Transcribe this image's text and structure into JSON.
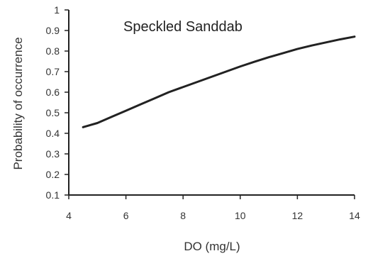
{
  "chart_data": {
    "type": "line",
    "title": "Speckled Sanddab",
    "xlabel": "DO (mg/L)",
    "ylabel": "Probability of occurrence",
    "xlim": [
      4,
      14
    ],
    "ylim": [
      0.1,
      1
    ],
    "xticks": [
      4,
      6,
      8,
      10,
      12,
      14
    ],
    "xtick_labels": [
      "4",
      "6",
      "8",
      "10",
      "12",
      "14"
    ],
    "yticks": [
      0.1,
      0.2,
      0.3,
      0.4,
      0.5,
      0.6,
      0.7,
      0.8,
      0.9,
      1
    ],
    "ytick_labels": [
      "0.1",
      "0.2",
      "0.3",
      "0.4",
      "0.5",
      "0.6",
      "0.7",
      "0.8",
      "0.9",
      "1"
    ],
    "grid": false,
    "series": [
      {
        "color": "#222222",
        "x": [
          4.5,
          5,
          5.5,
          6,
          6.5,
          7,
          7.5,
          8,
          8.5,
          9,
          9.5,
          10,
          10.5,
          11,
          11.5,
          12,
          12.5,
          13,
          13.5,
          14
        ],
        "y": [
          0.43,
          0.45,
          0.48,
          0.51,
          0.54,
          0.57,
          0.6,
          0.625,
          0.65,
          0.675,
          0.7,
          0.725,
          0.748,
          0.77,
          0.79,
          0.81,
          0.827,
          0.842,
          0.857,
          0.87
        ]
      }
    ]
  }
}
